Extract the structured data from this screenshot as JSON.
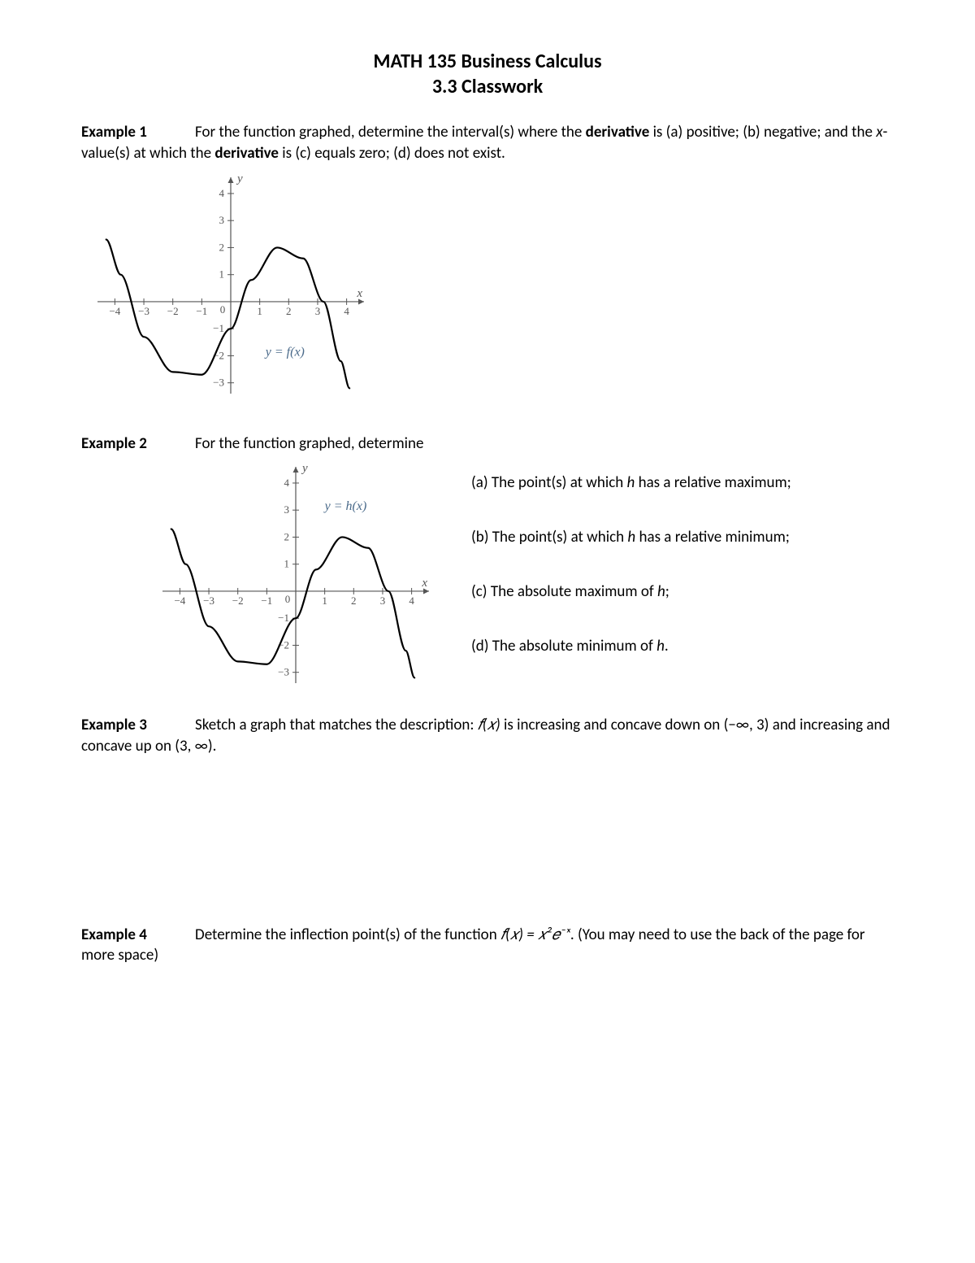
{
  "title": {
    "line1": "MATH 135 Business Calculus",
    "line2": "3.3 Classwork"
  },
  "example1": {
    "label": "Example 1",
    "text_before": "For the function graphed, determine the interval(s) where the ",
    "bold1": "derivative",
    "text_mid1": " is (a) positive; (b) negative; and the ",
    "italic1": "x",
    "text_mid2": "-value(s) at which the ",
    "bold2": "derivative",
    "text_after": " is (c) equals zero; (d) does not exist."
  },
  "example2": {
    "label": "Example 2",
    "lead": "For the function graphed, determine",
    "items": {
      "a_pre": "(a)   The point(s) at which ",
      "a_var": "h",
      "a_post": " has a relative maximum;",
      "b_pre": "(b)   The point(s) at which ",
      "b_var": "h",
      "b_post": " has a relative minimum;",
      "c_pre": "(c)   The absolute maximum of ",
      "c_var": "h",
      "c_post": ";",
      "d_pre": "(d)   The absolute minimum of ",
      "d_var": "h",
      "d_post": "."
    }
  },
  "example3": {
    "label": "Example 3",
    "pre": "Sketch a graph that matches the description: ",
    "fx": "𝑓(𝑥)",
    "mid1": " is increasing and concave down on ",
    "int1": "(−∞, 3)",
    "mid2": " and increasing and concave up on ",
    "int2": "(3, ∞)",
    "post": "."
  },
  "example4": {
    "label": "Example 4",
    "pre": "Determine the inflection point(s) of the function ",
    "eq": "𝑓(𝑥) = 𝑥²𝑒⁻ˣ",
    "post": ". (You may need to use the back of the page for more space)"
  },
  "graph": {
    "x_labels": [
      "−4",
      "−3",
      "−2",
      "−1",
      "0",
      "1",
      "2",
      "3",
      "4"
    ],
    "y_labels_pos": [
      "1",
      "2",
      "3",
      "4"
    ],
    "y_labels_neg": [
      "−1",
      "−2",
      "−3"
    ],
    "y_axis_label": "y",
    "x_axis_label": "x",
    "func_label_f": "y = f(x)",
    "func_label_h": "y = h(x)",
    "axis_color": "#555555",
    "tick_color": "#555555",
    "label_color": "#555555",
    "curve_color": "#000000",
    "func_label_color": "#4a6a8a",
    "curve_width": 2.2,
    "axis_width": 1.2,
    "xlim": [
      -4.6,
      4.6
    ],
    "ylim": [
      -3.4,
      4.6
    ],
    "font_size_ticks": 13,
    "font_size_axis": 15,
    "font_size_func": 16
  }
}
